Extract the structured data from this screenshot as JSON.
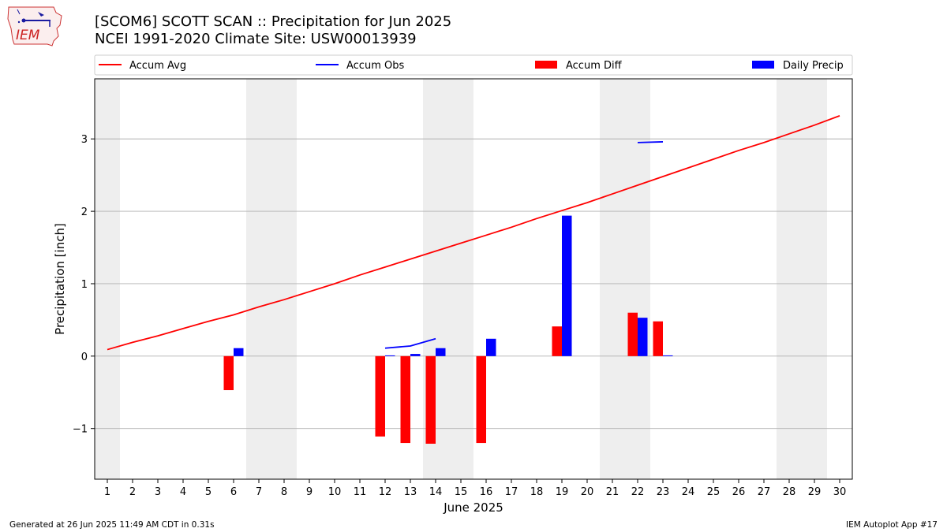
{
  "header": {
    "title_line1": "[SCOM6] SCOTT SCAN :: Precipitation for Jun 2025",
    "title_line2": "NCEI 1991-2020 Climate Site: USW00013939"
  },
  "logo": {
    "text": "IEM",
    "icon": "iowa-state-logo-icon"
  },
  "footer": {
    "generated": "Generated at 26 Jun 2025 11:49 AM CDT in 0.31s",
    "app": "IEM Autoplot App #17"
  },
  "colors": {
    "avg": "#ff0000",
    "obs": "#0000ff",
    "diff": "#ff0000",
    "daily": "#0000ff",
    "weekend": "#eeeeee",
    "grid": "#b0b0b0"
  },
  "chart_data": {
    "type": "bar",
    "xlabel": "June 2025",
    "ylabel": "Precipitation [inch]",
    "xlim": [
      0.5,
      30.5
    ],
    "ylim": [
      -1.7,
      3.83
    ],
    "yticks": [
      -1,
      0,
      1,
      2,
      3
    ],
    "ytick_labels": [
      "−1",
      "0",
      "1",
      "2",
      "3"
    ],
    "grid": "horizontal",
    "legend_position": "top",
    "days": [
      1,
      2,
      3,
      4,
      5,
      6,
      7,
      8,
      9,
      10,
      11,
      12,
      13,
      14,
      15,
      16,
      17,
      18,
      19,
      20,
      21,
      22,
      23,
      24,
      25,
      26,
      27,
      28,
      29,
      30
    ],
    "weekend_spans": [
      [
        0.5,
        1.5
      ],
      [
        6.5,
        8.5
      ],
      [
        13.5,
        15.5
      ],
      [
        20.5,
        22.5
      ],
      [
        27.5,
        29.5
      ]
    ],
    "legend": [
      {
        "label": "Accum Avg",
        "kind": "line",
        "color": "#ff0000"
      },
      {
        "label": "Accum Obs",
        "kind": "line",
        "color": "#0000ff"
      },
      {
        "label": "Accum Diff",
        "kind": "bar",
        "color": "#ff0000"
      },
      {
        "label": "Daily Precip",
        "kind": "bar",
        "color": "#0000ff"
      }
    ],
    "series": [
      {
        "name": "Accum Avg",
        "kind": "line",
        "x": [
          1,
          2,
          3,
          4,
          5,
          6,
          7,
          8,
          9,
          10,
          11,
          12,
          13,
          14,
          15,
          16,
          17,
          18,
          19,
          20,
          21,
          22,
          23,
          24,
          25,
          26,
          27,
          28,
          29,
          30
        ],
        "values": [
          0.09,
          0.19,
          0.28,
          0.38,
          0.48,
          0.57,
          0.68,
          0.78,
          0.89,
          1.0,
          1.12,
          1.23,
          1.34,
          1.45,
          1.56,
          1.67,
          1.78,
          1.9,
          2.01,
          2.12,
          2.24,
          2.36,
          2.48,
          2.6,
          2.72,
          2.84,
          2.95,
          3.07,
          3.19,
          3.32
        ]
      },
      {
        "name": "Accum Obs",
        "kind": "line",
        "segments": [
          {
            "x": [
              12,
              13,
              14
            ],
            "values": [
              0.11,
              0.14,
              0.24
            ]
          },
          {
            "x": [
              22,
              23
            ],
            "values": [
              2.95,
              2.96
            ]
          }
        ]
      },
      {
        "name": "Accum Diff",
        "kind": "bar",
        "x": [
          6,
          12,
          13,
          14,
          16,
          19,
          22,
          23
        ],
        "values": [
          -0.47,
          -1.11,
          -1.2,
          -1.21,
          -1.2,
          0.41,
          0.6,
          0.48
        ]
      },
      {
        "name": "Daily Precip",
        "kind": "bar",
        "x": [
          6,
          12,
          13,
          14,
          16,
          19,
          22,
          23
        ],
        "values": [
          0.11,
          0.01,
          0.03,
          0.11,
          0.24,
          1.94,
          0.53,
          0.01
        ]
      }
    ]
  }
}
